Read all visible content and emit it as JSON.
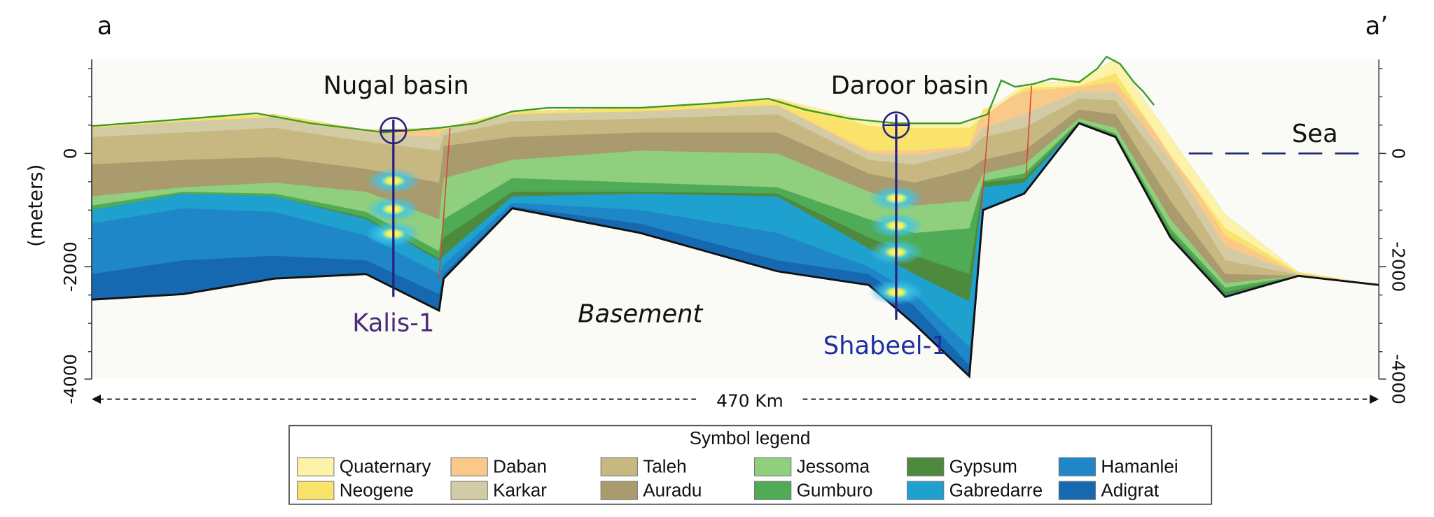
{
  "panel_labels": {
    "left": "a",
    "right": "a’"
  },
  "axis": {
    "label": "(meters)",
    "left_ticks": [
      "0",
      "-2000",
      "-4000"
    ],
    "right_ticks": [
      "0",
      "-2000",
      "-4000"
    ]
  },
  "annotations": {
    "nugal": "Nugal basin",
    "daroor": "Daroor basin",
    "sea": "Sea",
    "basement": "Basement"
  },
  "wells": [
    {
      "name": "Kalis-1"
    },
    {
      "name": "Shabeel-1"
    }
  ],
  "scale": "470 Km",
  "legend": {
    "title": "Symbol legend",
    "items": [
      {
        "label": "Quaternary",
        "color": "#fdf3a8"
      },
      {
        "label": "Neogene",
        "color": "#f9e36a"
      },
      {
        "label": "Daban",
        "color": "#f9c98a"
      },
      {
        "label": "Karkar",
        "color": "#d3cba3"
      },
      {
        "label": "Taleh",
        "color": "#c7b882"
      },
      {
        "label": "Auradu",
        "color": "#a99b6e"
      },
      {
        "label": "Jessoma",
        "color": "#8fcf7e"
      },
      {
        "label": "Gumburo",
        "color": "#4fab55"
      },
      {
        "label": "Gypsum",
        "color": "#4e8a3e"
      },
      {
        "label": "Gabredarre",
        "color": "#1ea1cf"
      },
      {
        "label": "Hamanlei",
        "color": "#1f86c8"
      },
      {
        "label": "Adigrat",
        "color": "#1669b0"
      }
    ]
  }
}
